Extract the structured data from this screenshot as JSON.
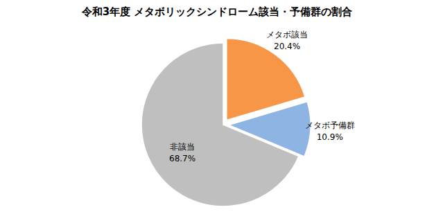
{
  "chart_data": {
    "type": "pie",
    "title": "令和3年度 メタボリックシンドローム該当・予備群の割合",
    "categories": [
      "メタボ該当",
      "メタボ予備群",
      "非該当"
    ],
    "values": [
      20.4,
      10.9,
      68.7
    ],
    "value_labels": [
      "20.4%",
      "10.9%",
      "68.7%"
    ],
    "colors": [
      "#f79646",
      "#8eb4e3",
      "#bfbfbf"
    ],
    "data_labels": true
  }
}
